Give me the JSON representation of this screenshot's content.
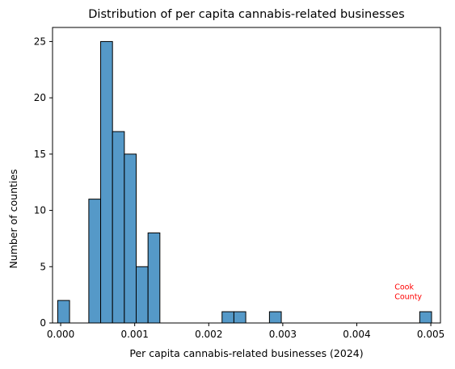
{
  "chart_data": {
    "type": "histogram",
    "title": "Distribution of per capita cannabis-related businesses",
    "xlabel": "Per capita cannabis-related businesses (2024)",
    "ylabel": "Number of counties",
    "xlim": [
      -0.00011,
      0.00513
    ],
    "ylim": [
      0,
      26.25
    ],
    "x_ticks": [
      0.0,
      0.001,
      0.002,
      0.003,
      0.004,
      0.005
    ],
    "x_tick_labels": [
      "0.000",
      "0.001",
      "0.002",
      "0.003",
      "0.004",
      "0.005"
    ],
    "y_ticks": [
      0,
      5,
      10,
      15,
      20,
      25
    ],
    "y_tick_labels": [
      "0",
      "5",
      "10",
      "15",
      "20",
      "25"
    ],
    "bar_color": "#5599c8",
    "bar_edge_color": "#000000",
    "bins": [
      {
        "x0": -4e-05,
        "x1": 0.00012,
        "count": 2
      },
      {
        "x0": 0.00038,
        "x1": 0.00054,
        "count": 11
      },
      {
        "x0": 0.00054,
        "x1": 0.0007,
        "count": 25
      },
      {
        "x0": 0.0007,
        "x1": 0.00086,
        "count": 17
      },
      {
        "x0": 0.00086,
        "x1": 0.00102,
        "count": 15
      },
      {
        "x0": 0.00102,
        "x1": 0.00118,
        "count": 5
      },
      {
        "x0": 0.00118,
        "x1": 0.00134,
        "count": 8
      },
      {
        "x0": 0.00218,
        "x1": 0.00234,
        "count": 1
      },
      {
        "x0": 0.00234,
        "x1": 0.0025,
        "count": 1
      },
      {
        "x0": 0.00282,
        "x1": 0.00298,
        "count": 1
      },
      {
        "x0": 0.00485,
        "x1": 0.00501,
        "count": 1
      }
    ],
    "annotations": [
      {
        "text_lines": [
          "Cook",
          "County"
        ],
        "x": 0.00451,
        "y": 2.1,
        "color": "#ff0000"
      }
    ]
  }
}
